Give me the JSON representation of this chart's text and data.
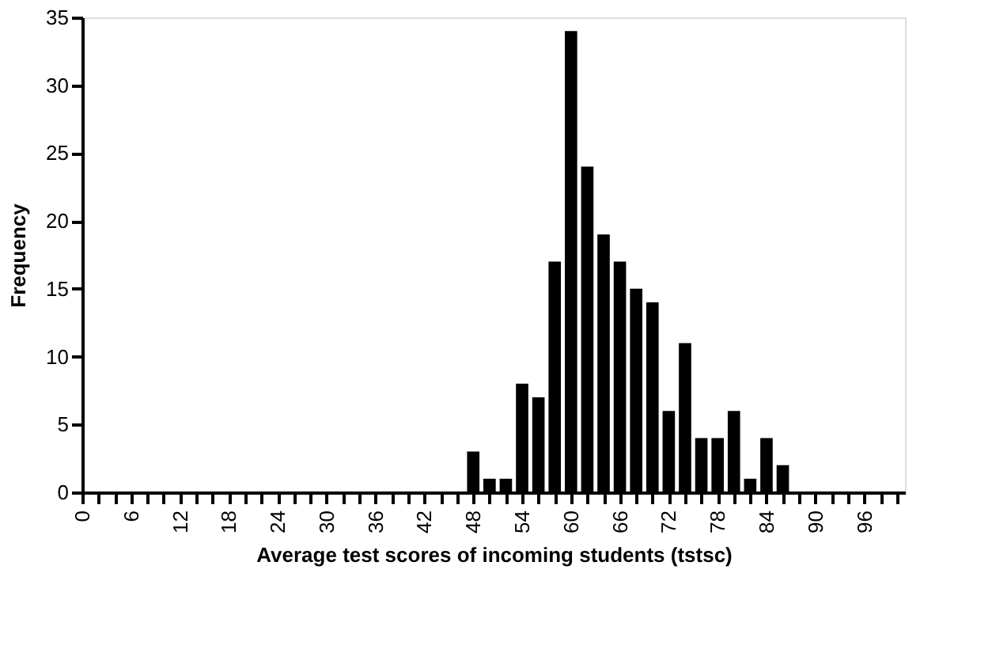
{
  "chart_data": {
    "type": "histogram",
    "xlabel": "Average test scores of incoming students (tstsc)",
    "ylabel": "Frequency",
    "bins": [
      47,
      49,
      51,
      53,
      55,
      57,
      59,
      61,
      63,
      65,
      67,
      69,
      71,
      73,
      75,
      77,
      79,
      81,
      83,
      85,
      87
    ],
    "values": [
      3,
      1,
      1,
      8,
      7,
      17,
      34,
      24,
      19,
      17,
      15,
      14,
      6,
      11,
      4,
      4,
      6,
      1,
      4,
      2
    ],
    "color": "#000000",
    "xlim": [
      0,
      101
    ],
    "xticks": [
      0,
      {
        "value": 2,
        "label": null
      },
      {
        "value": 4,
        "label": null
      },
      6,
      {
        "value": 8,
        "label": null
      },
      {
        "value": 10,
        "label": null
      },
      12,
      {
        "value": 14,
        "label": null
      },
      {
        "value": 16,
        "label": null
      },
      18,
      {
        "value": 20,
        "label": null
      },
      {
        "value": 22,
        "label": null
      },
      24,
      {
        "value": 26,
        "label": null
      },
      {
        "value": 28,
        "label": null
      },
      30,
      {
        "value": 32,
        "label": null
      },
      {
        "value": 34,
        "label": null
      },
      36,
      {
        "value": 38,
        "label": null
      },
      {
        "value": 40,
        "label": null
      },
      42,
      {
        "value": 44,
        "label": null
      },
      {
        "value": 46,
        "label": null
      },
      48,
      {
        "value": 50,
        "label": null
      },
      {
        "value": 52,
        "label": null
      },
      54,
      {
        "value": 56,
        "label": null
      },
      {
        "value": 58,
        "label": null
      },
      60,
      {
        "value": 62,
        "label": null
      },
      {
        "value": 64,
        "label": null
      },
      66,
      {
        "value": 68,
        "label": null
      },
      {
        "value": 70,
        "label": null
      },
      72,
      {
        "value": 74,
        "label": null
      },
      {
        "value": 76,
        "label": null
      },
      78,
      {
        "value": 80,
        "label": null
      },
      {
        "value": 82,
        "label": null
      },
      84,
      {
        "value": 86,
        "label": null
      },
      {
        "value": 88,
        "label": null
      },
      90,
      {
        "value": 92,
        "label": null
      },
      {
        "value": 94,
        "label": null
      },
      96,
      {
        "value": 98,
        "label": null
      },
      {
        "value": 100,
        "label": null
      }
    ],
    "ylim": [
      0,
      35
    ],
    "yticks": [
      0,
      5,
      10,
      15,
      20,
      25,
      30,
      35
    ],
    "grid": false
  }
}
